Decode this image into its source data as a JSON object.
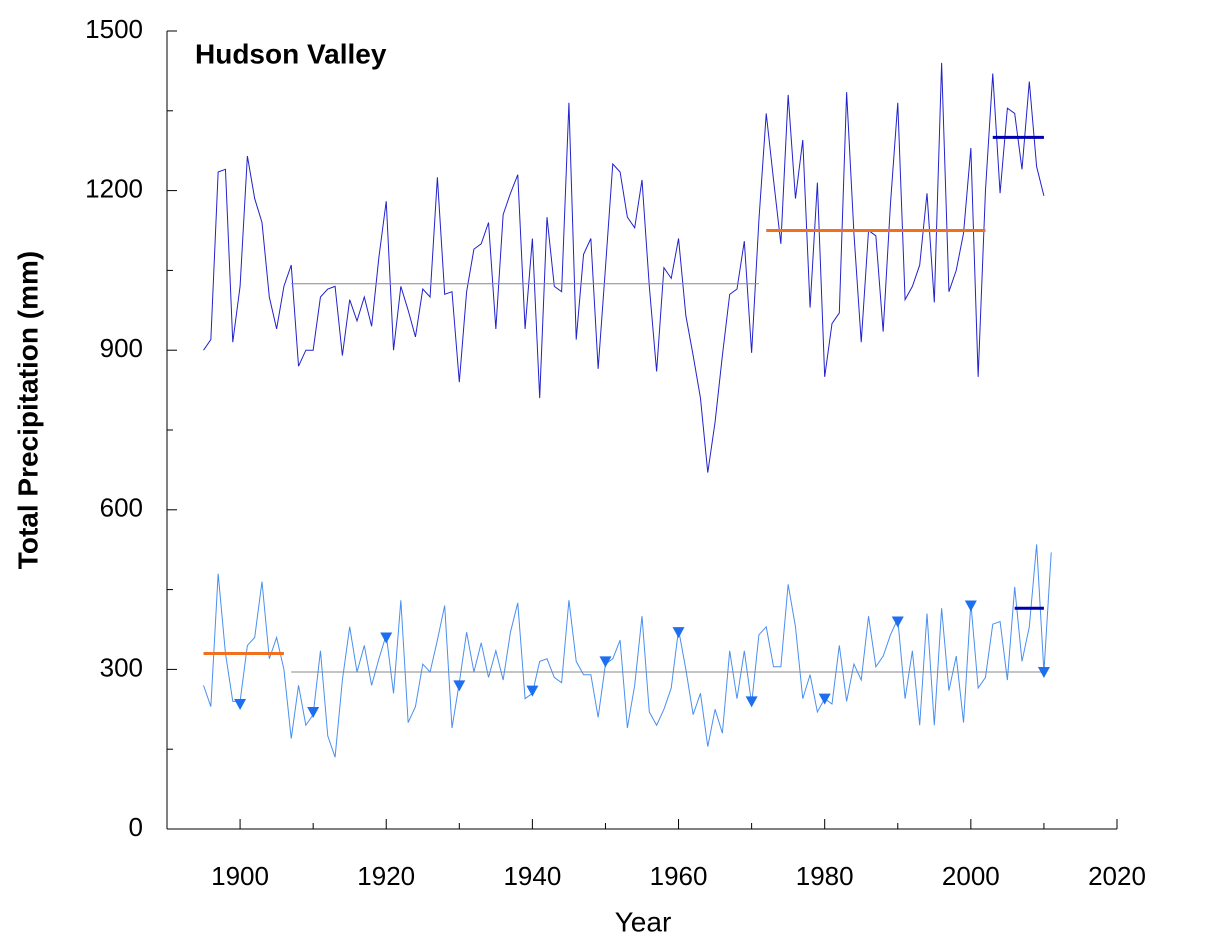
{
  "chart_data": {
    "type": "line",
    "title": "Hudson Valley",
    "x_label": "Year",
    "y_label": "Total Precipitation (mm)",
    "xlim": [
      1890,
      2020
    ],
    "xticks": [
      1900,
      1920,
      1940,
      1960,
      1980,
      2000,
      2020
    ],
    "xminorticks": [
      1910,
      1930,
      1950,
      1970,
      1990,
      2010
    ],
    "ylim": [
      0,
      1500
    ],
    "yticks": [
      0,
      300,
      600,
      900,
      1200,
      1500
    ],
    "yminorticks": [
      150,
      450,
      750,
      1050,
      1350
    ],
    "series": [
      {
        "color": "#2222cc",
        "x": [
          1895,
          1896,
          1897,
          1898,
          1899,
          1900,
          1901,
          1902,
          1903,
          1904,
          1905,
          1906,
          1907,
          1908,
          1909,
          1910,
          1911,
          1912,
          1913,
          1914,
          1915,
          1916,
          1917,
          1918,
          1919,
          1920,
          1921,
          1922,
          1923,
          1924,
          1925,
          1926,
          1927,
          1928,
          1929,
          1930,
          1931,
          1932,
          1933,
          1934,
          1935,
          1936,
          1937,
          1938,
          1939,
          1940,
          1941,
          1942,
          1943,
          1944,
          1945,
          1946,
          1947,
          1948,
          1949,
          1950,
          1951,
          1952,
          1953,
          1954,
          1955,
          1956,
          1957,
          1958,
          1959,
          1960,
          1961,
          1962,
          1963,
          1964,
          1965,
          1966,
          1967,
          1968,
          1969,
          1970,
          1971,
          1972,
          1973,
          1974,
          1975,
          1976,
          1977,
          1978,
          1979,
          1980,
          1981,
          1982,
          1983,
          1984,
          1985,
          1986,
          1987,
          1988,
          1989,
          1990,
          1991,
          1992,
          1993,
          1994,
          1995,
          1996,
          1997,
          1998,
          1999,
          2000,
          2001,
          2002,
          2003,
          2004,
          2005,
          2006,
          2007,
          2008,
          2009,
          2010
        ],
        "values": [
          900,
          920,
          1235,
          1240,
          915,
          1020,
          1265,
          1185,
          1140,
          1000,
          940,
          1020,
          1060,
          870,
          900,
          900,
          1000,
          1015,
          1020,
          890,
          995,
          955,
          1000,
          945,
          1075,
          1180,
          900,
          1020,
          975,
          925,
          1015,
          1000,
          1225,
          1005,
          1010,
          840,
          1010,
          1090,
          1100,
          1140,
          940,
          1155,
          1195,
          1230,
          940,
          1110,
          810,
          1150,
          1020,
          1010,
          1365,
          920,
          1080,
          1110,
          865,
          1055,
          1250,
          1235,
          1150,
          1130,
          1220,
          1020,
          860,
          1055,
          1035,
          1110,
          965,
          890,
          810,
          670,
          765,
          890,
          1005,
          1015,
          1105,
          895,
          1145,
          1345,
          1220,
          1100,
          1380,
          1185,
          1295,
          980,
          1215,
          850,
          950,
          970,
          1385,
          1120,
          915,
          1125,
          1115,
          935,
          1175,
          1365,
          995,
          1020,
          1060,
          1195,
          990,
          1440,
          1010,
          1050,
          1120,
          1280,
          850,
          1200,
          1420,
          1195,
          1355,
          1345,
          1240,
          1405,
          1245,
          1190
        ]
      },
      {
        "color": "#4a8ff0",
        "x": [
          1895,
          1896,
          1897,
          1898,
          1899,
          1900,
          1901,
          1902,
          1903,
          1904,
          1905,
          1906,
          1907,
          1908,
          1909,
          1910,
          1911,
          1912,
          1913,
          1914,
          1915,
          1916,
          1917,
          1918,
          1919,
          1920,
          1921,
          1922,
          1923,
          1924,
          1925,
          1926,
          1927,
          1928,
          1929,
          1930,
          1931,
          1932,
          1933,
          1934,
          1935,
          1936,
          1937,
          1938,
          1939,
          1940,
          1941,
          1942,
          1943,
          1944,
          1945,
          1946,
          1947,
          1948,
          1949,
          1950,
          1951,
          1952,
          1953,
          1954,
          1955,
          1956,
          1957,
          1958,
          1959,
          1960,
          1961,
          1962,
          1963,
          1964,
          1965,
          1966,
          1967,
          1968,
          1969,
          1970,
          1971,
          1972,
          1973,
          1974,
          1975,
          1976,
          1977,
          1978,
          1979,
          1980,
          1981,
          1982,
          1983,
          1984,
          1985,
          1986,
          1987,
          1988,
          1989,
          1990,
          1991,
          1992,
          1993,
          1994,
          1995,
          1996,
          1997,
          1998,
          1999,
          2000,
          2001,
          2002,
          2003,
          2004,
          2005,
          2006,
          2007,
          2008,
          2009,
          2010,
          2011
        ],
        "values": [
          270,
          230,
          480,
          330,
          240,
          240,
          345,
          360,
          465,
          320,
          360,
          300,
          170,
          270,
          195,
          215,
          335,
          175,
          135,
          280,
          380,
          295,
          345,
          270,
          320,
          365,
          255,
          430,
          200,
          230,
          310,
          295,
          355,
          420,
          190,
          275,
          370,
          295,
          350,
          285,
          335,
          280,
          370,
          425,
          245,
          255,
          315,
          320,
          285,
          275,
          430,
          315,
          290,
          290,
          210,
          310,
          320,
          355,
          190,
          270,
          400,
          220,
          195,
          225,
          265,
          375,
          300,
          215,
          255,
          155,
          225,
          180,
          335,
          245,
          335,
          235,
          365,
          380,
          305,
          305,
          460,
          380,
          245,
          290,
          220,
          245,
          235,
          345,
          240,
          310,
          280,
          400,
          305,
          325,
          365,
          395,
          245,
          335,
          195,
          405,
          195,
          415,
          260,
          325,
          200,
          425,
          265,
          285,
          385,
          390,
          280,
          455,
          315,
          380,
          535,
          295,
          520
        ]
      }
    ],
    "markers": {
      "color": "#1e6fef",
      "x": [
        1900,
        1910,
        1920,
        1930,
        1940,
        1950,
        1960,
        1970,
        1980,
        1990,
        2000,
        2010
      ],
      "values": [
        235,
        220,
        360,
        270,
        260,
        315,
        370,
        240,
        245,
        390,
        420,
        295
      ]
    },
    "segments": [
      {
        "color": "#888888",
        "x": [
          1907,
          1971
        ],
        "value": 1025
      },
      {
        "color": "#f07020",
        "x": [
          1972,
          2002
        ],
        "value": 1125
      },
      {
        "color": "#0000b0",
        "x": [
          2003,
          2010
        ],
        "value": 1300
      },
      {
        "color": "#f07020",
        "x": [
          1895,
          1906
        ],
        "value": 330
      },
      {
        "color": "#888888",
        "x": [
          1907,
          2010
        ],
        "value": 295
      },
      {
        "color": "#0000b0",
        "x": [
          2006,
          2010
        ],
        "value": 415
      }
    ]
  }
}
